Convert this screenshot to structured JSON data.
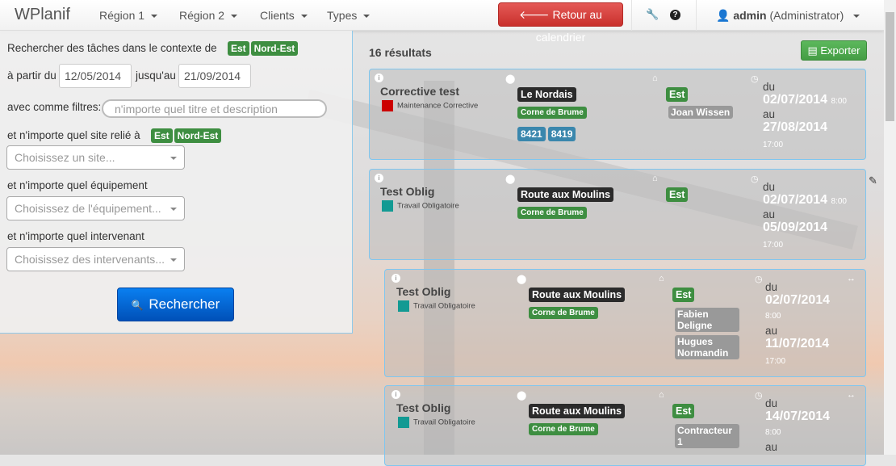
{
  "nav": {
    "brand": "WPlanif",
    "menus": [
      "Région 1",
      "Région 2",
      "Clients",
      "Types"
    ],
    "back_button": "Retour au calendrier",
    "user_name": "admin",
    "user_role": "(Administrator)"
  },
  "search": {
    "context_label": "Rechercher des tâches dans le contexte de",
    "context_tags": [
      "Est",
      "Nord-Est"
    ],
    "from_label": "à partir du",
    "from_value": "12/05/2014",
    "to_label": "jusqu'au",
    "to_value": "21/09/2014",
    "filters_label": "avec comme filtres:",
    "filters_placeholder": "n'importe quel titre et description",
    "site_label": "et n'importe quel site relié à",
    "site_tags": [
      "Est",
      "Nord-Est"
    ],
    "site_placeholder": "Choisissez un site...",
    "equipment_label": "et n'importe quel équipement",
    "equipment_placeholder": "Choisissez de l'équipement...",
    "worker_label": "et n'importe quel intervenant",
    "worker_placeholder": "Choisissez des intervenants...",
    "search_button": "Rechercher"
  },
  "results": {
    "count": "16 résultats",
    "export_button": "Exporter",
    "cards": [
      {
        "title": "Corrective test",
        "type": "Maintenance Corrective",
        "type_color": "#cc0000",
        "site": "Le Nordais",
        "client": "Corne de Brume",
        "equipment": [
          "8421",
          "8419"
        ],
        "region": "Est",
        "workers": [
          "Joan Wissen"
        ],
        "from_label": "du",
        "from_date": "02/07/2014",
        "from_time": "8:00",
        "to_label": "au",
        "to_date": "27/08/2014",
        "to_time": "17:00",
        "nested": false
      },
      {
        "title": "Test Oblig",
        "type": "Travail Obligatoire",
        "type_color": "#139a93",
        "site": "Route aux Moulins",
        "client": "Corne de Brume",
        "equipment": [],
        "region": "Est",
        "workers": [],
        "from_label": "du",
        "from_date": "02/07/2014",
        "from_time": "8:00",
        "to_label": "au",
        "to_date": "05/09/2014",
        "to_time": "17:00",
        "nested": false
      },
      {
        "title": "Test Oblig",
        "type": "Travail Obligatoire",
        "type_color": "#139a93",
        "site": "Route aux Moulins",
        "client": "Corne de Brume",
        "equipment": [],
        "region": "Est",
        "workers": [
          "Fabien Deligne",
          "Hugues Normandin"
        ],
        "from_label": "du",
        "from_date": "02/07/2014",
        "from_time": "8:00",
        "to_label": "au",
        "to_date": "11/07/2014",
        "to_time": "17:00",
        "nested": true
      },
      {
        "title": "Test Oblig",
        "type": "Travail Obligatoire",
        "type_color": "#139a93",
        "site": "Route aux Moulins",
        "client": "Corne de Brume",
        "equipment": [],
        "region": "Est",
        "workers": [
          "Contracteur 1"
        ],
        "from_label": "du",
        "from_date": "14/07/2014",
        "from_time": "8:00",
        "to_label": "au",
        "nested": true
      }
    ]
  }
}
